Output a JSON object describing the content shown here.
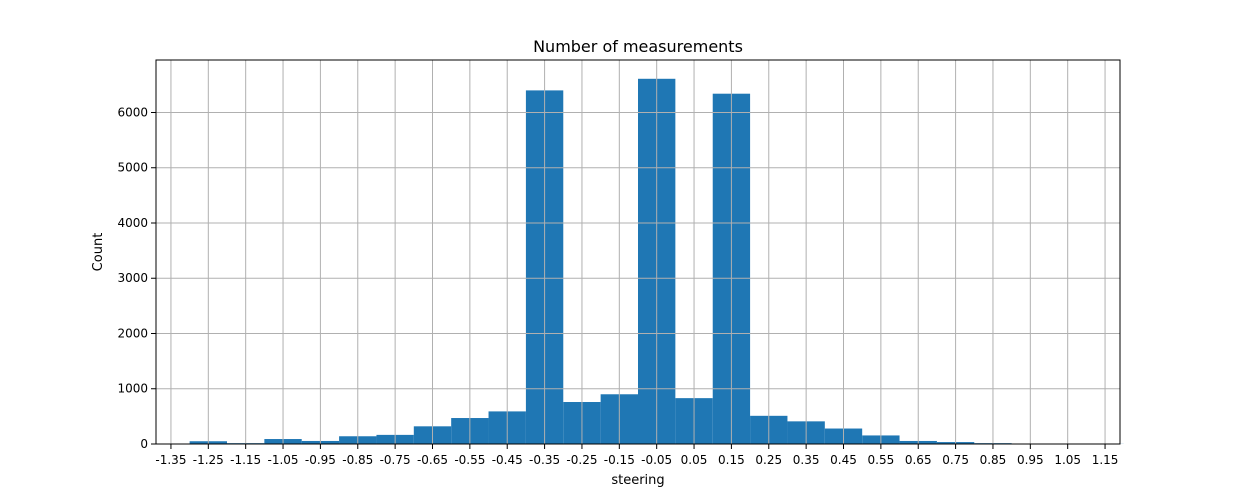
{
  "chart_data": {
    "type": "bar",
    "title": "Number of measurements",
    "xlabel": "steering",
    "ylabel": "Count",
    "xlim": [
      -1.39,
      1.19
    ],
    "ylim": [
      0,
      6950
    ],
    "grid": true,
    "bar_color": "#1f77b4",
    "bin_width": 0.1,
    "bin_starts": [
      -1.3,
      -1.2,
      -1.1,
      -1.0,
      -0.9,
      -0.8,
      -0.7,
      -0.6,
      -0.5,
      -0.4,
      -0.3,
      -0.2,
      -0.1,
      0.0,
      0.1,
      0.2,
      0.3,
      0.4,
      0.5,
      0.6,
      0.7,
      0.8,
      0.9,
      1.0,
      1.1
    ],
    "values": [
      50,
      15,
      90,
      55,
      140,
      165,
      320,
      470,
      590,
      6400,
      760,
      900,
      6610,
      830,
      6340,
      510,
      410,
      280,
      155,
      55,
      35,
      15,
      5,
      3,
      2
    ],
    "x_ticks": [
      -1.35,
      -1.25,
      -1.15,
      -1.05,
      -0.95,
      -0.85,
      -0.75,
      -0.65,
      -0.55,
      -0.45,
      -0.35,
      -0.25,
      -0.15,
      -0.05,
      0.05,
      0.15,
      0.25,
      0.35,
      0.45,
      0.55,
      0.65,
      0.75,
      0.85,
      0.95,
      1.05,
      1.15
    ],
    "x_tick_labels": [
      "-1.35",
      "-1.25",
      "-1.15",
      "-1.05",
      "-0.95",
      "-0.85",
      "-0.75",
      "-0.65",
      "-0.55",
      "-0.45",
      "-0.35",
      "-0.25",
      "-0.15",
      "-0.05",
      "0.05",
      "0.15",
      "0.25",
      "0.35",
      "0.45",
      "0.55",
      "0.65",
      "0.75",
      "0.85",
      "0.95",
      "1.05",
      "1.15"
    ],
    "y_ticks": [
      0,
      1000,
      2000,
      3000,
      4000,
      5000,
      6000
    ],
    "y_tick_labels": [
      "0",
      "1000",
      "2000",
      "3000",
      "4000",
      "5000",
      "6000"
    ]
  }
}
